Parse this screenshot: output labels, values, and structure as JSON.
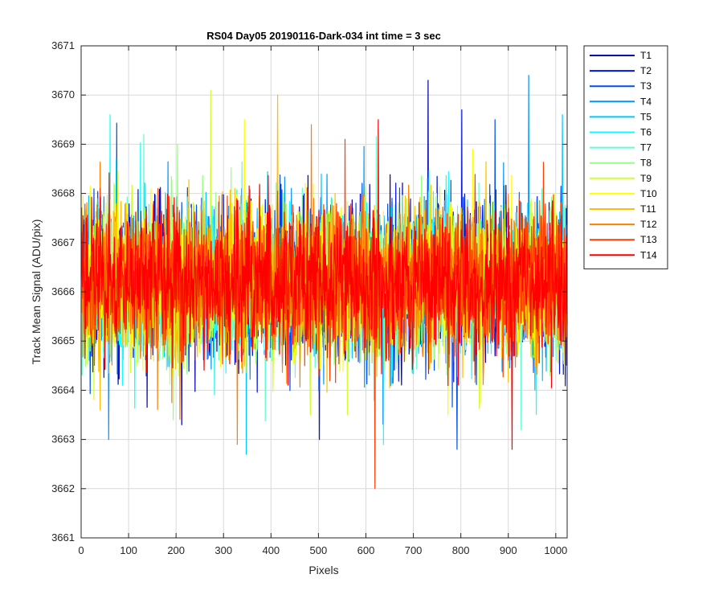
{
  "chart_data": {
    "type": "line",
    "title": "RS04 Day05 20190116-Dark-034 int time = 3 sec",
    "xlabel": "Pixels",
    "ylabel": "Track Mean Signal (ADU/pix)",
    "xlim": [
      0,
      1024
    ],
    "ylim": [
      3661,
      3671
    ],
    "xticks": [
      0,
      100,
      200,
      300,
      400,
      500,
      600,
      700,
      800,
      900,
      1000
    ],
    "yticks": [
      3661,
      3662,
      3663,
      3664,
      3665,
      3666,
      3667,
      3668,
      3669,
      3670,
      3671
    ],
    "grid": true,
    "legend_position": "outside-top-right",
    "x_range": [
      1,
      1024
    ],
    "mean_level": 3666.2,
    "spread_typical": 1.6,
    "series": [
      {
        "name": "T1",
        "color": "#0000b0",
        "min": 3663.3,
        "max": 3670.3
      },
      {
        "name": "T2",
        "color": "#0014e0",
        "min": 3663.0,
        "max": 3669.7
      },
      {
        "name": "T3",
        "color": "#0050f0",
        "min": 3662.8,
        "max": 3669.5
      },
      {
        "name": "T4",
        "color": "#0096ff",
        "min": 3663.0,
        "max": 3670.4
      },
      {
        "name": "T5",
        "color": "#00c8ff",
        "min": 3662.7,
        "max": 3669.6
      },
      {
        "name": "T6",
        "color": "#14ffff",
        "min": 3662.9,
        "max": 3669.6
      },
      {
        "name": "T7",
        "color": "#60ffd0",
        "min": 3663.2,
        "max": 3669.2
      },
      {
        "name": "T8",
        "color": "#96ff80",
        "min": 3663.4,
        "max": 3669.0
      },
      {
        "name": "T9",
        "color": "#d2ff30",
        "min": 3663.5,
        "max": 3670.1
      },
      {
        "name": "T10",
        "color": "#ffff00",
        "min": 3663.5,
        "max": 3669.5
      },
      {
        "name": "T11",
        "color": "#ffc000",
        "min": 3663.6,
        "max": 3670.0
      },
      {
        "name": "T12",
        "color": "#ff8000",
        "min": 3662.9,
        "max": 3669.4
      },
      {
        "name": "T13",
        "color": "#ff4000",
        "min": 3662.0,
        "max": 3669.1
      },
      {
        "name": "T14",
        "color": "#ff0000",
        "min": 3662.8,
        "max": 3669.5
      }
    ]
  }
}
